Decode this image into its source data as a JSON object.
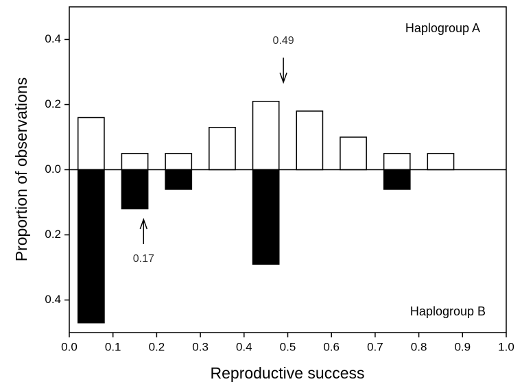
{
  "chart_data": {
    "type": "mirrored-histogram",
    "x_label": "Reproductive success",
    "y_label": "Proportion of observations",
    "bins": [
      0,
      0.1,
      0.2,
      0.3,
      0.4,
      0.5,
      0.6,
      0.7,
      0.8,
      0.9
    ],
    "series": [
      {
        "name": "Haplogroup A",
        "color": "#ffffff",
        "values": [
          0.16,
          0.05,
          0.05,
          0.13,
          0.21,
          0.18,
          0.1,
          0.05,
          0.05
        ]
      },
      {
        "name": "Haplogroup B",
        "color": "#000000",
        "values": [
          -0.47,
          -0.12,
          -0.06,
          0,
          -0.29,
          0,
          0,
          -0.06,
          0
        ]
      }
    ],
    "annotations": [
      {
        "value": 0.49,
        "label": "0.49"
      },
      {
        "value": 0.17,
        "label": "0.17"
      }
    ],
    "xlim": [
      0,
      1
    ],
    "xticks": [
      {
        "value": 0,
        "label": "0.0"
      },
      0.1,
      0.2,
      0.3,
      0.4,
      0.5,
      0.6,
      0.7,
      0.8,
      0.9,
      {
        "value": 1,
        "label": "1.0"
      }
    ],
    "ylim": [
      -0.5,
      0.5
    ],
    "yticks": [
      {
        "value": -0.4,
        "label": "0.4"
      },
      {
        "value": -0.2,
        "label": "0.2"
      },
      {
        "value": 0,
        "label": "0.0"
      },
      0.2,
      0.4
    ]
  }
}
